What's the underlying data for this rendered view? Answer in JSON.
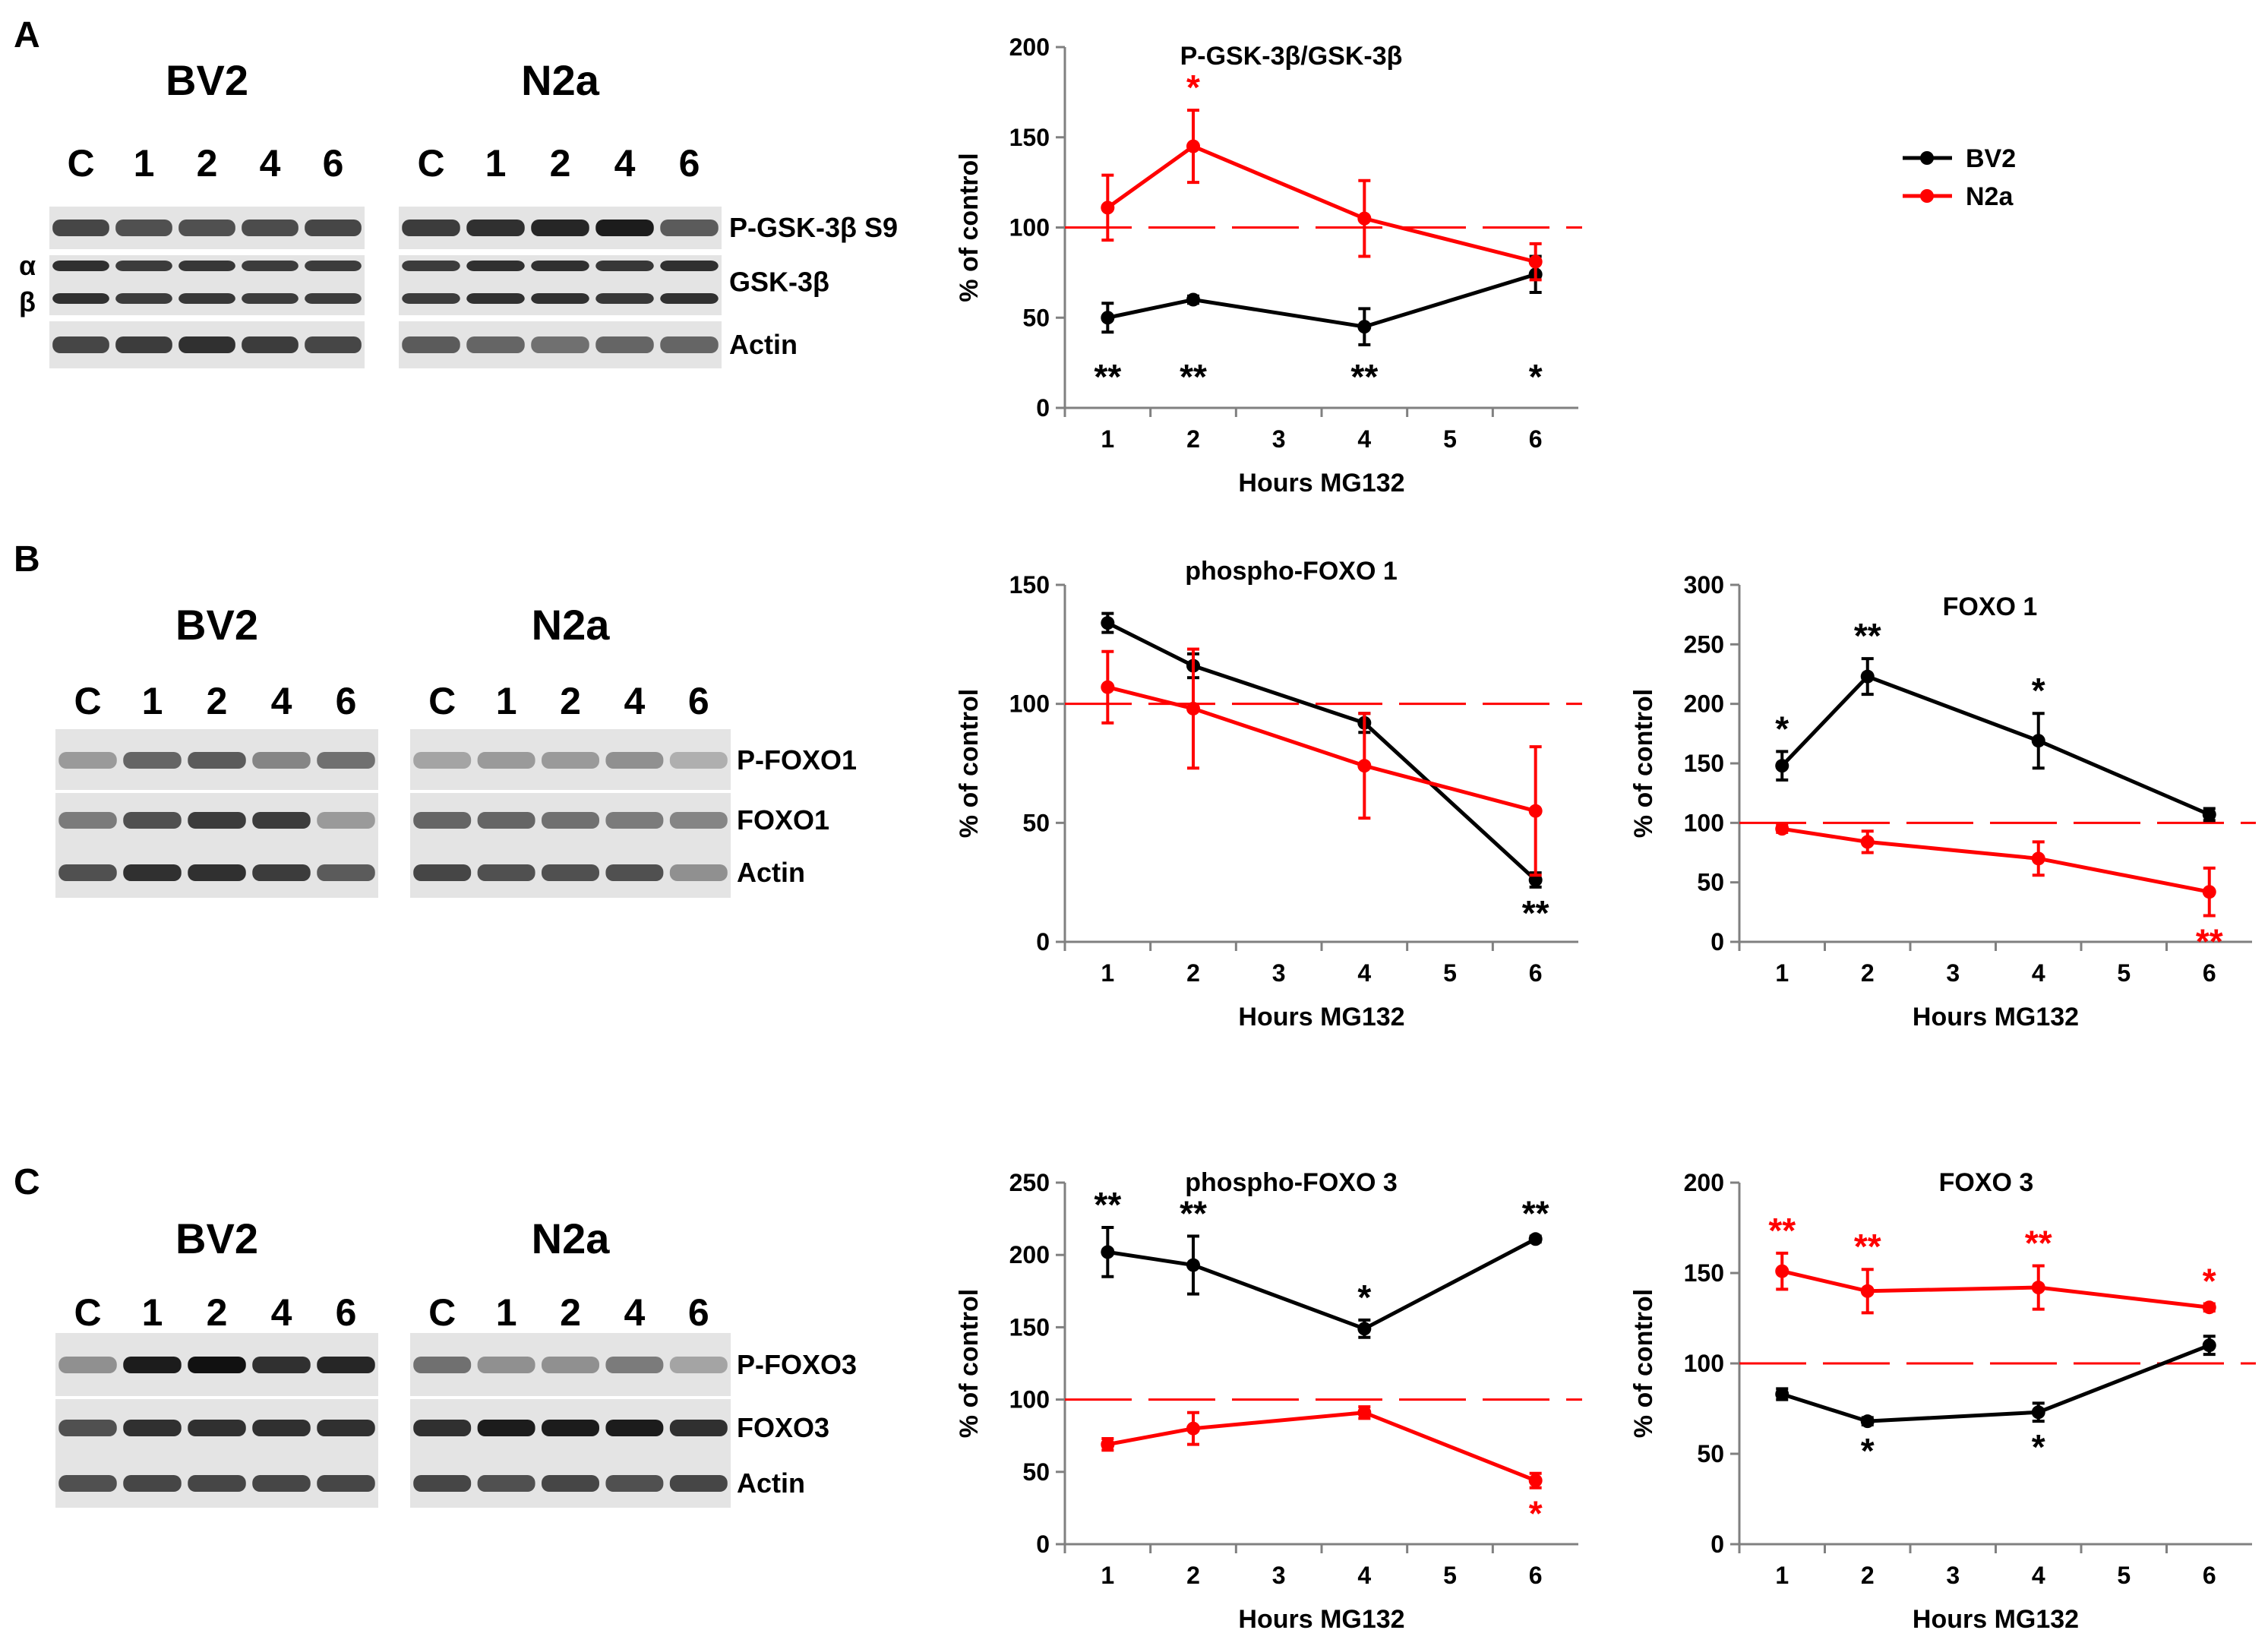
{
  "panels": [
    {
      "letter": "A",
      "blots": {
        "cell_types": [
          "BV2",
          "N2a"
        ],
        "lanes": [
          "C",
          "1",
          "2",
          "4",
          "6"
        ],
        "bands": [
          "P-GSK-3β S9",
          "GSK-3β",
          "Actin"
        ],
        "isoform_labels": [
          "α",
          "β"
        ]
      }
    },
    {
      "letter": "B",
      "blots": {
        "cell_types": [
          "BV2",
          "N2a"
        ],
        "lanes": [
          "C",
          "1",
          "2",
          "4",
          "6"
        ],
        "bands": [
          "P-FOXO1",
          "FOXO1",
          "Actin"
        ]
      }
    },
    {
      "letter": "C",
      "blots": {
        "cell_types": [
          "BV2",
          "N2a"
        ],
        "lanes": [
          "C",
          "1",
          "2",
          "4",
          "6"
        ],
        "bands": [
          "P-FOXO3",
          "FOXO3",
          "Actin"
        ]
      }
    }
  ],
  "legend": {
    "entries": [
      {
        "name": "BV2",
        "color": "#000000"
      },
      {
        "name": "N2a",
        "color": "#ff0000"
      }
    ],
    "placement": "top-right"
  },
  "colors": {
    "bv2": "#000000",
    "n2a": "#ff0000",
    "reference": "#ff0000"
  },
  "chart_data": [
    {
      "id": "gsk",
      "type": "line",
      "title": "P-GSK-3β/GSK-3β",
      "xlabel": "Hours MG132",
      "ylabel": "% of control",
      "xlim": [
        0.5,
        6.5
      ],
      "ylim": [
        0,
        200
      ],
      "xticks": [
        1,
        2,
        3,
        4,
        5,
        6
      ],
      "yticks": [
        0,
        50,
        100,
        150,
        200
      ],
      "reference_line": 100,
      "series": [
        {
          "name": "BV2",
          "color": "#000000",
          "x": [
            1,
            2,
            4,
            6
          ],
          "y": [
            50,
            60,
            45,
            74
          ],
          "err": [
            8,
            2,
            10,
            10
          ],
          "sig": [
            "**",
            "**",
            "**",
            "*"
          ],
          "sig_pos": "below"
        },
        {
          "name": "N2a",
          "color": "#ff0000",
          "x": [
            1,
            2,
            4,
            6
          ],
          "y": [
            111,
            145,
            105,
            81
          ],
          "err": [
            18,
            20,
            21,
            10
          ],
          "sig": [
            "",
            "*",
            "",
            ""
          ],
          "sig_pos": "above"
        }
      ]
    },
    {
      "id": "pfoxo1",
      "type": "line",
      "title": "phospho-FOXO 1",
      "xlabel": "Hours MG132",
      "ylabel": "% of control",
      "xlim": [
        0.5,
        6.5
      ],
      "ylim": [
        0,
        150
      ],
      "xticks": [
        1,
        2,
        3,
        4,
        5,
        6
      ],
      "yticks": [
        0,
        50,
        100,
        150
      ],
      "reference_line": 100,
      "series": [
        {
          "name": "BV2",
          "color": "#000000",
          "x": [
            1,
            2,
            4,
            6
          ],
          "y": [
            134,
            116,
            92,
            26
          ],
          "err": [
            4,
            5,
            4,
            3
          ],
          "sig": [
            "",
            "",
            "",
            "**"
          ],
          "sig_pos": "below"
        },
        {
          "name": "N2a",
          "color": "#ff0000",
          "x": [
            1,
            2,
            4,
            6
          ],
          "y": [
            107,
            98,
            74,
            55
          ],
          "err": [
            15,
            25,
            22,
            27
          ],
          "sig": [
            "",
            "",
            "",
            ""
          ],
          "sig_pos": "above"
        }
      ]
    },
    {
      "id": "foxo1",
      "type": "line",
      "title": "FOXO 1",
      "xlabel": "Hours MG132",
      "ylabel": "% of control",
      "xlim": [
        0.5,
        6.5
      ],
      "ylim": [
        0,
        300
      ],
      "xticks": [
        1,
        2,
        3,
        4,
        5,
        6
      ],
      "yticks": [
        0,
        50,
        100,
        150,
        200,
        250,
        300
      ],
      "reference_line": 100,
      "series": [
        {
          "name": "BV2",
          "color": "#000000",
          "x": [
            1,
            2,
            4,
            6
          ],
          "y": [
            148,
            223,
            169,
            107
          ],
          "err": [
            12,
            15,
            23,
            5
          ],
          "sig": [
            "*",
            "**",
            "*",
            ""
          ],
          "sig_pos": "above"
        },
        {
          "name": "N2a",
          "color": "#ff0000",
          "x": [
            1,
            2,
            4,
            6
          ],
          "y": [
            95,
            84,
            70,
            42
          ],
          "err": [
            3,
            9,
            14,
            20
          ],
          "sig": [
            "",
            "",
            "",
            "**"
          ],
          "sig_pos": "below"
        }
      ]
    },
    {
      "id": "pfoxo3",
      "type": "line",
      "title": "phospho-FOXO 3",
      "xlabel": "Hours MG132",
      "ylabel": "% of control",
      "xlim": [
        0.5,
        6.5
      ],
      "ylim": [
        0,
        250
      ],
      "xticks": [
        1,
        2,
        3,
        4,
        5,
        6
      ],
      "yticks": [
        0,
        50,
        100,
        150,
        200,
        250
      ],
      "reference_line": 100,
      "series": [
        {
          "name": "BV2",
          "color": "#000000",
          "x": [
            1,
            2,
            4,
            6
          ],
          "y": [
            202,
            193,
            149,
            211
          ],
          "err": [
            17,
            20,
            6,
            2
          ],
          "sig": [
            "**",
            "**",
            "*",
            "**"
          ],
          "sig_pos": "above"
        },
        {
          "name": "N2a",
          "color": "#ff0000",
          "x": [
            1,
            2,
            4,
            6
          ],
          "y": [
            69,
            80,
            91,
            44
          ],
          "err": [
            4,
            11,
            4,
            5
          ],
          "sig": [
            "",
            "",
            "",
            "*"
          ],
          "sig_pos": "below"
        }
      ]
    },
    {
      "id": "foxo3",
      "type": "line",
      "title": "FOXO 3",
      "xlabel": "Hours MG132",
      "ylabel": "% of control",
      "xlim": [
        0.5,
        6.5
      ],
      "ylim": [
        0,
        200
      ],
      "xticks": [
        1,
        2,
        3,
        4,
        5,
        6
      ],
      "yticks": [
        0,
        50,
        100,
        150,
        200
      ],
      "reference_line": 100,
      "series": [
        {
          "name": "BV2",
          "color": "#000000",
          "x": [
            1,
            2,
            4,
            6
          ],
          "y": [
            83,
            68,
            73,
            110
          ],
          "err": [
            3,
            2,
            5,
            5
          ],
          "sig": [
            "",
            "*",
            "*",
            ""
          ],
          "sig_pos": "below"
        },
        {
          "name": "N2a",
          "color": "#ff0000",
          "x": [
            1,
            2,
            4,
            6
          ],
          "y": [
            151,
            140,
            142,
            131
          ],
          "err": [
            10,
            12,
            12,
            2
          ],
          "sig": [
            "**",
            "**",
            "**",
            "*"
          ],
          "sig_pos": "above"
        }
      ]
    }
  ]
}
